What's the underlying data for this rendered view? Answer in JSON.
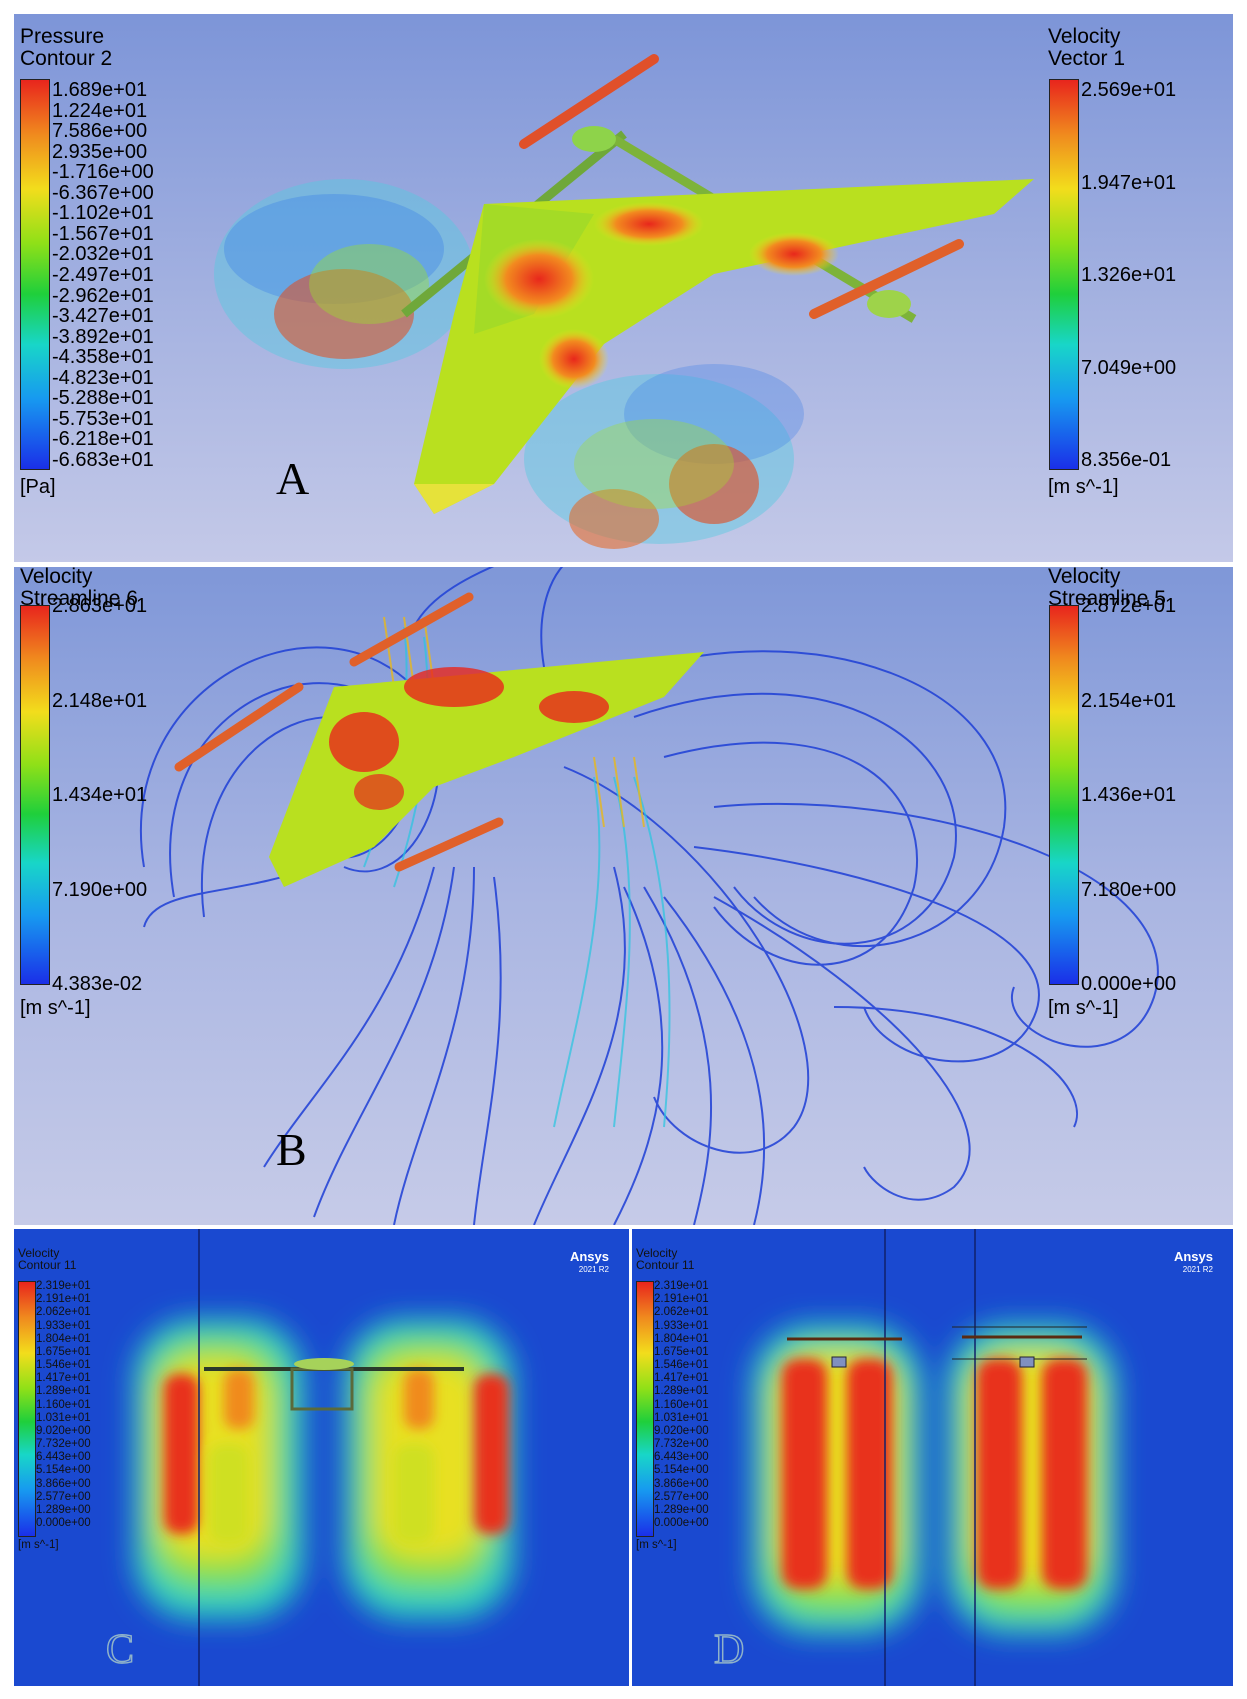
{
  "panels": {
    "a": {
      "label": "A",
      "left_legend": {
        "title": "Pressure\nContour 2",
        "ticks": [
          "1.689e+01",
          "1.224e+01",
          "7.586e+00",
          "2.935e+00",
          "-1.716e+00",
          "-6.367e+00",
          "-1.102e+01",
          "-1.567e+01",
          "-2.032e+01",
          "-2.497e+01",
          "-2.962e+01",
          "-3.427e+01",
          "-3.892e+01",
          "-4.358e+01",
          "-4.823e+01",
          "-5.288e+01",
          "-5.753e+01",
          "-6.218e+01",
          "-6.683e+01"
        ],
        "unit": "[Pa]"
      },
      "right_legend": {
        "title": "Velocity\nVector 1",
        "ticks": [
          "2.569e+01",
          "1.947e+01",
          "1.326e+01",
          "7.049e+00",
          "8.356e-01"
        ],
        "unit": "[m s^-1]"
      }
    },
    "b": {
      "label": "B",
      "left_legend": {
        "title": "Velocity\nStreamline 6",
        "ticks": [
          "2.863e+01",
          "2.148e+01",
          "1.434e+01",
          "7.190e+00",
          "4.383e-02"
        ],
        "unit": "[m s^-1]"
      },
      "right_legend": {
        "title": "Velocity\nStreamline 5",
        "ticks": [
          "2.872e+01",
          "2.154e+01",
          "1.436e+01",
          "7.180e+00",
          "0.000e+00"
        ],
        "unit": "[m s^-1]"
      }
    },
    "c": {
      "label": "C",
      "legend": {
        "title": "Velocity\nContour 11",
        "ticks": [
          "2.319e+01",
          "2.191e+01",
          "2.062e+01",
          "1.933e+01",
          "1.804e+01",
          "1.675e+01",
          "1.546e+01",
          "1.417e+01",
          "1.289e+01",
          "1.160e+01",
          "1.031e+01",
          "9.020e+00",
          "7.732e+00",
          "6.443e+00",
          "5.154e+00",
          "3.866e+00",
          "2.577e+00",
          "1.289e+00",
          "0.000e+00"
        ],
        "unit": "[m s^-1]"
      },
      "brand": "Ansys",
      "version": "2021 R2"
    },
    "d": {
      "label": "D",
      "legend": {
        "title": "Velocity\nContour 11",
        "ticks": [
          "2.319e+01",
          "2.191e+01",
          "2.062e+01",
          "1.933e+01",
          "1.804e+01",
          "1.675e+01",
          "1.546e+01",
          "1.417e+01",
          "1.289e+01",
          "1.160e+01",
          "1.031e+01",
          "9.020e+00",
          "7.732e+00",
          "6.443e+00",
          "5.154e+00",
          "3.866e+00",
          "2.577e+00",
          "1.289e+00",
          "0.000e+00"
        ],
        "unit": "[m s^-1]"
      },
      "brand": "Ansys",
      "version": "2021 R2"
    }
  }
}
